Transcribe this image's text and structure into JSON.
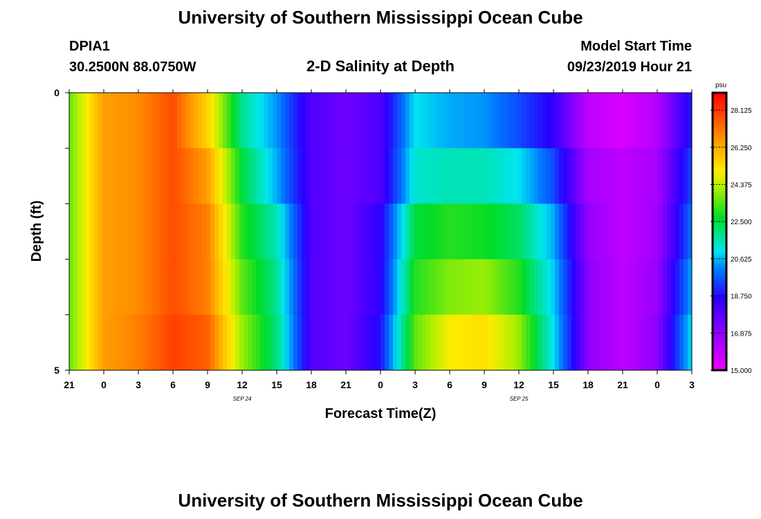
{
  "header": {
    "title": "University of Southern Mississippi Ocean Cube",
    "station_id": "DPIA1",
    "station_coords": "30.2500N 88.0750W",
    "plot_title": "2-D Salinity at Depth",
    "model_start_label": "Model Start Time",
    "model_start_value": "09/23/2019 Hour 21"
  },
  "footer": {
    "title": "University of Southern Mississippi Ocean Cube"
  },
  "chart_data": {
    "type": "heatmap",
    "title": "2-D Salinity at Depth",
    "xlabel": "Forecast Time(Z)",
    "ylabel": "Depth (ft)",
    "x_start_hour_label": "21",
    "x_hours": [
      21,
      0,
      3,
      6,
      9,
      12,
      15,
      18,
      21,
      0,
      3,
      6,
      9,
      12,
      15,
      18,
      21,
      0,
      3
    ],
    "x_tick_labels": [
      "21",
      "0",
      "3",
      "6",
      "9",
      "12",
      "15",
      "18",
      "21",
      "0",
      "3",
      "6",
      "9",
      "12",
      "15",
      "18",
      "21",
      "0",
      "3"
    ],
    "date_labels": [
      {
        "text": "SEP 24",
        "at_hour_index": 5
      },
      {
        "text": "SEP 25",
        "at_hour_index": 13
      }
    ],
    "ylim": [
      0,
      5
    ],
    "y_tick_labels": [
      "0",
      "5"
    ],
    "depth_levels": 5,
    "colorbar": {
      "unit": "psu",
      "min": 15.0,
      "max": 29.0,
      "tick_labels": [
        "28.125",
        "26.250",
        "24.375",
        "22.500",
        "20.625",
        "18.750",
        "16.875",
        "15.000"
      ],
      "tick_values": [
        28.125,
        26.25,
        24.375,
        22.5,
        20.625,
        18.75,
        16.875,
        15.0
      ]
    },
    "time_hours": [
      0,
      3,
      6,
      9,
      12,
      15,
      18,
      21,
      24,
      27,
      30,
      33,
      36,
      39,
      42,
      45,
      48,
      51,
      54
    ],
    "salinity_rows": [
      {
        "depth_row": 1,
        "values": [
          23.5,
          26.5,
          26.8,
          27.8,
          25.5,
          21.8,
          20.3,
          18.0,
          17.5,
          18.0,
          21.0,
          20.5,
          20.3,
          19.5,
          18.5,
          16.0,
          15.5,
          16.2,
          19.0
        ]
      },
      {
        "depth_row": 2,
        "values": [
          23.5,
          26.5,
          26.8,
          27.8,
          26.5,
          22.5,
          20.5,
          18.0,
          17.5,
          18.0,
          21.3,
          21.5,
          21.5,
          21.0,
          19.5,
          16.5,
          16.0,
          16.5,
          19.5
        ]
      },
      {
        "depth_row": 3,
        "values": [
          23.5,
          26.5,
          26.8,
          27.8,
          27.0,
          23.0,
          21.5,
          18.0,
          17.5,
          18.5,
          22.5,
          23.0,
          22.8,
          22.2,
          20.5,
          16.8,
          16.0,
          16.6,
          20.0
        ]
      },
      {
        "depth_row": 4,
        "values": [
          23.5,
          26.5,
          26.8,
          27.8,
          27.0,
          23.5,
          21.8,
          18.0,
          17.5,
          18.5,
          23.0,
          23.8,
          24.0,
          23.0,
          20.8,
          17.0,
          16.0,
          16.8,
          20.5
        ]
      },
      {
        "depth_row": 5,
        "values": [
          23.5,
          26.5,
          27.0,
          28.0,
          27.5,
          24.0,
          22.0,
          18.0,
          17.5,
          18.8,
          23.5,
          25.0,
          25.3,
          24.0,
          21.0,
          17.0,
          16.0,
          17.0,
          21.0
        ]
      }
    ]
  }
}
